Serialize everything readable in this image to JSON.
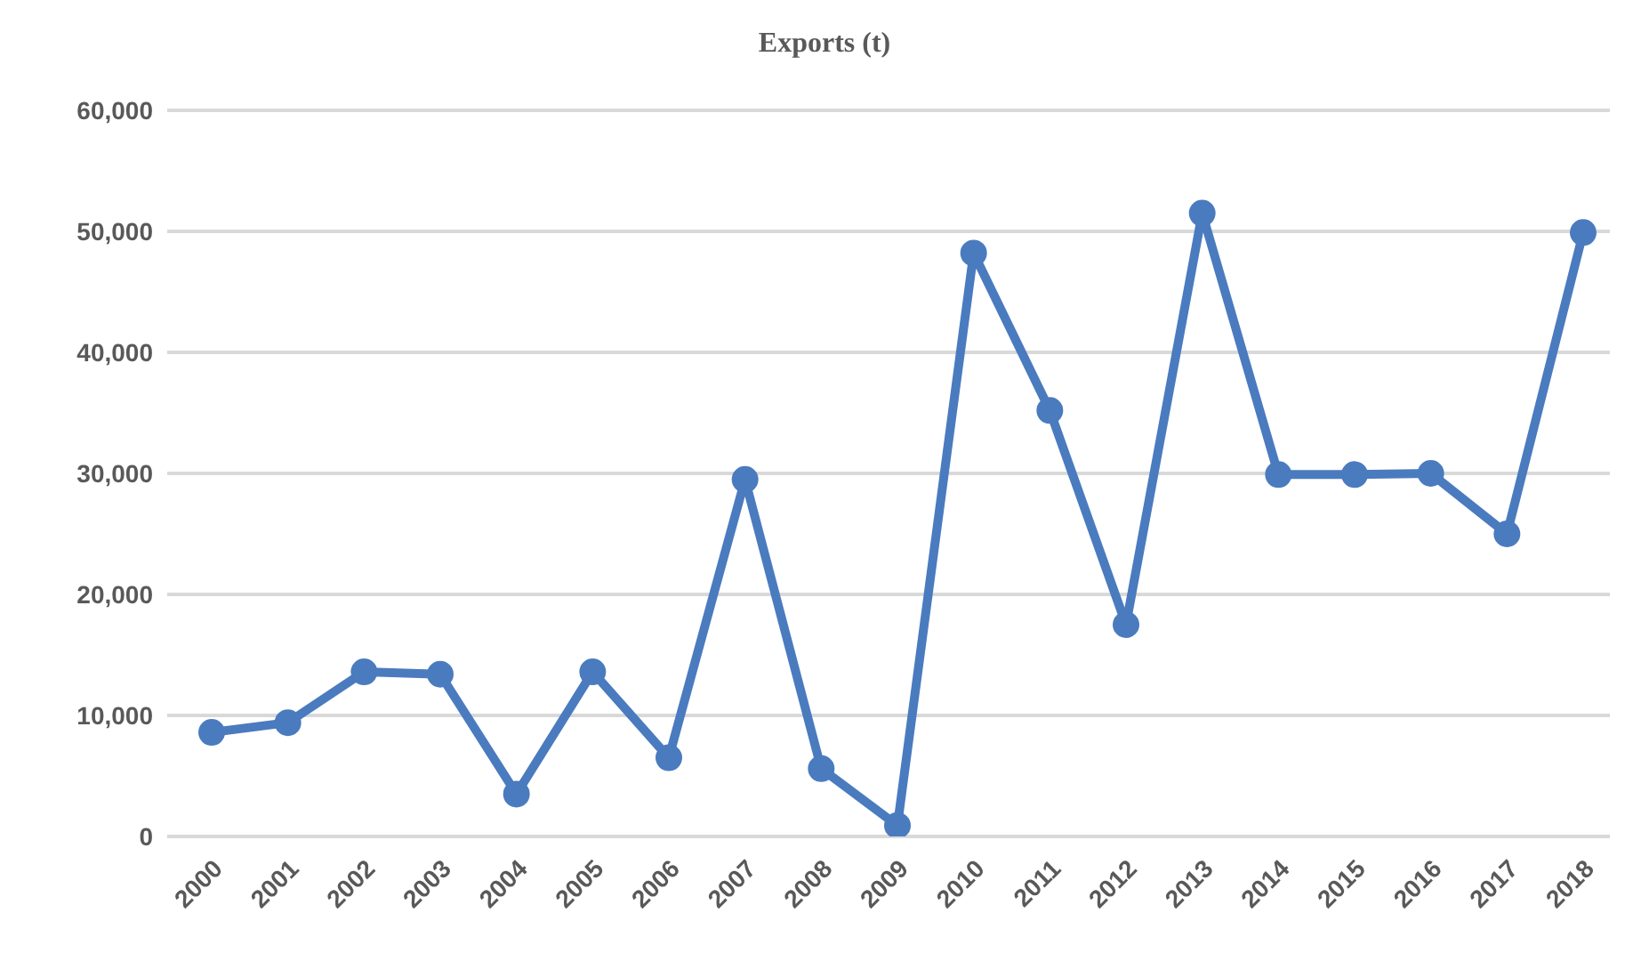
{
  "chart_data": {
    "type": "line",
    "title": "Exports (t)",
    "categories": [
      "2000",
      "2001",
      "2002",
      "2003",
      "2004",
      "2005",
      "2006",
      "2007",
      "2008",
      "2009",
      "2010",
      "2011",
      "2012",
      "2013",
      "2014",
      "2015",
      "2016",
      "2017",
      "2018"
    ],
    "series": [
      {
        "color": "#4a7bbf",
        "values": [
          8600,
          9400,
          13600,
          13400,
          3500,
          13600,
          6500,
          29500,
          5600,
          900,
          48200,
          35200,
          17500,
          51500,
          29900,
          29900,
          30000,
          25000,
          49900
        ]
      }
    ],
    "ylim": [
      0,
      60000
    ],
    "yticks": [
      {
        "value": 0,
        "label": "0"
      },
      {
        "value": 10000,
        "label": "10,000"
      },
      {
        "value": 20000,
        "label": "20,000"
      },
      {
        "value": 30000,
        "label": "30,000"
      },
      {
        "value": 40000,
        "label": "40,000"
      },
      {
        "value": 50000,
        "label": "50,000"
      },
      {
        "value": 60000,
        "label": "60,000"
      }
    ],
    "grid": "y",
    "marker": "circle",
    "line_style": "solid"
  }
}
